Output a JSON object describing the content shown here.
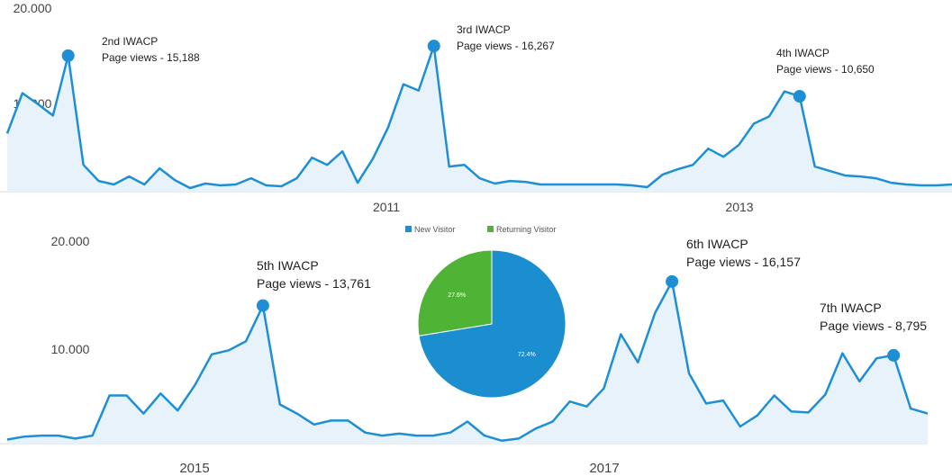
{
  "chart_data": [
    {
      "type": "area",
      "yaxis_labels": [
        "20.000",
        "10.000"
      ],
      "ylim": [
        0,
        20000
      ],
      "x_tick_labels": [
        "2011",
        "2013"
      ],
      "color": "#1e8fd5",
      "fill": "#e7f2fa",
      "values": [
        6500,
        11000,
        9800,
        8500,
        15188,
        3000,
        1200,
        800,
        1700,
        800,
        2600,
        1300,
        400,
        900,
        700,
        800,
        1500,
        700,
        600,
        1500,
        3800,
        3000,
        4500,
        1000,
        3700,
        7200,
        12000,
        11300,
        16267,
        2800,
        3000,
        1500,
        900,
        1200,
        1100,
        800,
        800,
        800,
        800,
        800,
        800,
        700,
        500,
        1900,
        2500,
        3000,
        4800,
        3900,
        5200,
        7600,
        8400,
        11200,
        10650,
        2800,
        2300,
        1800,
        1700,
        1500,
        1000,
        800,
        700,
        700,
        800
      ],
      "annotations": [
        {
          "index": 4,
          "title": "2nd IWACP",
          "subtitle": "Page views - 15,188"
        },
        {
          "index": 28,
          "title": "3rd IWACP",
          "subtitle": "Page views - 16,267"
        },
        {
          "index": 52,
          "title": "4th IWACP",
          "subtitle": "Page views - 10,650"
        }
      ]
    },
    {
      "type": "area",
      "yaxis_labels": [
        "20.000",
        "10.000"
      ],
      "ylim": [
        0,
        20000
      ],
      "x_tick_labels": [
        "2015",
        "2017"
      ],
      "color": "#1e8fd5",
      "fill": "#e7f2fa",
      "values": [
        400,
        700,
        800,
        800,
        500,
        800,
        4800,
        4800,
        3000,
        5000,
        3300,
        5800,
        8900,
        9300,
        10200,
        13761,
        3900,
        3000,
        1900,
        2300,
        2300,
        1100,
        800,
        1000,
        800,
        800,
        1100,
        2200,
        800,
        300,
        500,
        1500,
        2200,
        4200,
        3700,
        5500,
        10900,
        8100,
        13000,
        16157,
        7000,
        4000,
        4300,
        1700,
        2800,
        4800,
        3200,
        3100,
        4900,
        9000,
        6200,
        8500,
        8795,
        3500,
        3000
      ],
      "annotations": [
        {
          "index": 15,
          "title": "5th IWACP",
          "subtitle": "Page views - 13,761"
        },
        {
          "index": 39,
          "title": "6th IWACP",
          "subtitle": "Page views - 16,157"
        },
        {
          "index": 52,
          "title": "7th IWACP",
          "subtitle": "Page views - 8,795"
        }
      ]
    },
    {
      "type": "pie",
      "legend": [
        "New Visitor",
        "Returning Visitor"
      ],
      "slices": [
        {
          "name": "New Visitor",
          "value": 72.4,
          "label": "72.4%",
          "color": "#1b8ed0"
        },
        {
          "name": "Returning Visitor",
          "value": 27.6,
          "label": "27.6%",
          "color": "#4fb336"
        }
      ]
    }
  ]
}
